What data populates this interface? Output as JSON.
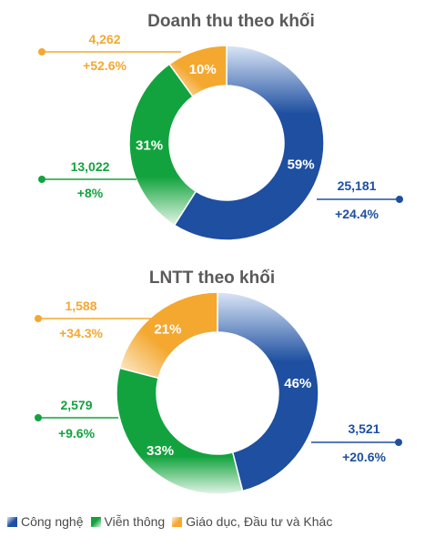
{
  "colors": {
    "tech": "#1e4fa0",
    "tech_light": "#dbe6f6",
    "telecom": "#12a33e",
    "telecom_light": "#e4f5e6",
    "edu": "#f4a830",
    "edu_light": "#fdf0d8"
  },
  "legend": [
    {
      "label": "Công nghệ",
      "color_key": "tech"
    },
    {
      "label": "Viễn thông",
      "color_key": "telecom"
    },
    {
      "label": "Giáo dục, Đầu tư và Khác",
      "color_key": "edu"
    }
  ],
  "chart_data": [
    {
      "type": "pie",
      "title": "Doanh thu theo khối",
      "categories": [
        "Công nghệ",
        "Viễn thông",
        "Giáo dục, Đầu tư và Khác"
      ],
      "shares": [
        59,
        31,
        10
      ],
      "share_labels": [
        "59%",
        "31%",
        "10%"
      ],
      "values": [
        "25,181",
        "13,022",
        "4,262"
      ],
      "growth": [
        "+24.4%",
        "+8%",
        "+52.6%"
      ]
    },
    {
      "type": "pie",
      "title": "LNTT theo khối",
      "categories": [
        "Công nghệ",
        "Viễn thông",
        "Giáo dục, Đầu tư và Khác"
      ],
      "shares": [
        46,
        33,
        21
      ],
      "share_labels": [
        "46%",
        "33%",
        "21%"
      ],
      "values": [
        "3,521",
        "2,579",
        "1,588"
      ],
      "growth": [
        "+20.6%",
        "+9.6%",
        "+34.3%"
      ]
    }
  ]
}
